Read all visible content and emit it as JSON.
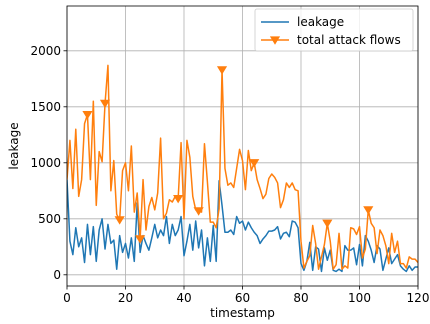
{
  "chart_data": {
    "type": "line",
    "title": "",
    "xlabel": "timestamp",
    "ylabel": "leakage",
    "xlim": [
      0,
      120
    ],
    "ylim": [
      -100,
      2400
    ],
    "xticks": [
      0,
      20,
      40,
      60,
      80,
      100,
      120
    ],
    "yticks": [
      0,
      500,
      1000,
      1500,
      2000
    ],
    "xtick_labels": [
      "0",
      "20",
      "40",
      "60",
      "80",
      "100",
      "120"
    ],
    "ytick_labels": [
      "0",
      "500",
      "1000",
      "1500",
      "2000"
    ],
    "grid": true,
    "legend_position": "top-right",
    "x": [
      0,
      1,
      2,
      3,
      4,
      5,
      6,
      7,
      8,
      9,
      10,
      11,
      12,
      13,
      14,
      15,
      16,
      17,
      18,
      19,
      20,
      21,
      22,
      23,
      24,
      25,
      26,
      27,
      28,
      29,
      30,
      31,
      32,
      33,
      34,
      35,
      36,
      37,
      38,
      39,
      40,
      41,
      42,
      43,
      44,
      45,
      46,
      47,
      48,
      49,
      50,
      51,
      52,
      53,
      54,
      55,
      56,
      57,
      58,
      59,
      60,
      61,
      62,
      63,
      64,
      65,
      66,
      67,
      68,
      69,
      70,
      71,
      72,
      73,
      74,
      75,
      76,
      77,
      78,
      79,
      80,
      81,
      82,
      83,
      84,
      85,
      86,
      87,
      88,
      89,
      90,
      91,
      92,
      93,
      94,
      95,
      96,
      97,
      98,
      99,
      100,
      101,
      102,
      103,
      104,
      105,
      106,
      107,
      108,
      109,
      110,
      111,
      112,
      113,
      114,
      115,
      116,
      117,
      118,
      119,
      120
    ],
    "series": [
      {
        "name": "leakage",
        "color": "#1f77b4",
        "marker": "none",
        "values": [
          850,
          300,
          180,
          420,
          250,
          330,
          110,
          450,
          180,
          430,
          120,
          400,
          500,
          230,
          450,
          280,
          310,
          50,
          350,
          200,
          280,
          150,
          330,
          120,
          640,
          200,
          350,
          280,
          220,
          330,
          450,
          330,
          400,
          350,
          520,
          280,
          450,
          350,
          400,
          520,
          170,
          300,
          450,
          220,
          480,
          240,
          400,
          80,
          330,
          120,
          440,
          120,
          840,
          620,
          380,
          380,
          400,
          360,
          520,
          460,
          480,
          400,
          470,
          420,
          380,
          350,
          280,
          320,
          350,
          390,
          390,
          400,
          430,
          320,
          370,
          380,
          340,
          480,
          470,
          420,
          100,
          40,
          120,
          290,
          40,
          250,
          230,
          30,
          240,
          130,
          220,
          40,
          30,
          50,
          30,
          260,
          220,
          220,
          240,
          90,
          270,
          80,
          350,
          300,
          220,
          110,
          260,
          230,
          40,
          140,
          240,
          100,
          140,
          180,
          80,
          50,
          30,
          80,
          40,
          70,
          70
        ]
      },
      {
        "name": "total attack flows",
        "color": "#ff7f0e",
        "marker": "triangle-down",
        "marker_x": [
          7,
          13,
          18,
          25,
          38,
          45,
          53,
          64,
          89,
          103
        ],
        "values": [
          850,
          1200,
          770,
          1300,
          700,
          850,
          1350,
          1430,
          850,
          1550,
          620,
          1100,
          1010,
          1530,
          1870,
          750,
          1020,
          540,
          490,
          930,
          1000,
          750,
          1150,
          560,
          730,
          320,
          850,
          400,
          610,
          690,
          580,
          730,
          1220,
          500,
          550,
          670,
          650,
          700,
          680,
          1180,
          500,
          1200,
          1050,
          700,
          580,
          570,
          560,
          1170,
          830,
          470,
          470,
          420,
          590,
          1830,
          950,
          800,
          820,
          780,
          950,
          1120,
          1020,
          760,
          1110,
          930,
          1000,
          850,
          770,
          680,
          720,
          860,
          900,
          870,
          820,
          600,
          670,
          820,
          780,
          820,
          760,
          750,
          300,
          60,
          120,
          170,
          440,
          280,
          50,
          160,
          270,
          460,
          300,
          50,
          90,
          370,
          50,
          80,
          60,
          420,
          410,
          360,
          430,
          150,
          230,
          580,
          460,
          420,
          190,
          400,
          350,
          260,
          100,
          370,
          200,
          300,
          100,
          100,
          60,
          160,
          140,
          140,
          110
        ]
      }
    ]
  }
}
